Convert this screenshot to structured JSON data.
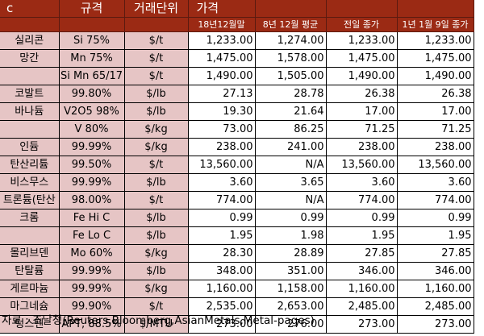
{
  "header": {
    "col_c": "c",
    "col_spec": "규격",
    "col_unit": "거래단위",
    "col_price": "가격",
    "sub_dec_end": "18년12월말",
    "sub_dec_avg": "8년 12월 평균",
    "sub_prev_close": "전일 종가",
    "sub_jan9": "1년 1월 9일 종가"
  },
  "rows": [
    {
      "name": "실리콘",
      "spec": "Si 75%",
      "unit": "$/t",
      "v1": "1,233.00",
      "v2": "1,274.00",
      "v3": "1,233.00",
      "v4": "1,233.00"
    },
    {
      "name": "망간",
      "spec": "Mn 75%",
      "unit": "$/t",
      "v1": "1,475.00",
      "v2": "1,578.00",
      "v3": "1,475.00",
      "v4": "1,475.00"
    },
    {
      "name": "",
      "spec": "Si Mn 65/17",
      "unit": "$/t",
      "v1": "1,490.00",
      "v2": "1,505.00",
      "v3": "1,490.00",
      "v4": "1,490.00"
    },
    {
      "name": "코발트",
      "spec": "99.80%",
      "unit": "$/lb",
      "v1": "27.13",
      "v2": "28.78",
      "v3": "26.38",
      "v4": "26.38"
    },
    {
      "name": "바나듐",
      "spec": "V2O5 98%",
      "unit": "$/lb",
      "v1": "19.30",
      "v2": "21.64",
      "v3": "17.00",
      "v4": "17.00"
    },
    {
      "name": "",
      "spec": "V 80%",
      "unit": "$/kg",
      "v1": "73.00",
      "v2": "86.25",
      "v3": "71.25",
      "v4": "71.25"
    },
    {
      "name": "인듐",
      "spec": "99.99%",
      "unit": "$/kg",
      "v1": "238.00",
      "v2": "241.00",
      "v3": "238.00",
      "v4": "238.00"
    },
    {
      "name": "탄산리튬",
      "spec": "99.50%",
      "unit": "$/t",
      "v1": "13,560.00",
      "v2": "N/A",
      "v3": "13,560.00",
      "v4": "13,560.00"
    },
    {
      "name": "비스무스",
      "spec": "99.99%",
      "unit": "$/lb",
      "v1": "3.60",
      "v2": "3.65",
      "v3": "3.60",
      "v4": "3.60"
    },
    {
      "name": "트론튬(탄산",
      "spec": "98.00%",
      "unit": "$/t",
      "v1": "774.00",
      "v2": "N/A",
      "v3": "774.00",
      "v4": "774.00"
    },
    {
      "name": "크롬",
      "spec": "Fe Hi C",
      "unit": "$/lb",
      "v1": "0.99",
      "v2": "0.99",
      "v3": "0.99",
      "v4": "0.99"
    },
    {
      "name": "",
      "spec": "Fe Lo C",
      "unit": "$/lb",
      "v1": "1.95",
      "v2": "1.98",
      "v3": "1.95",
      "v4": "1.95"
    },
    {
      "name": "몰리브덴",
      "spec": "Mo 60%",
      "unit": "$/kg",
      "v1": "28.30",
      "v2": "28.89",
      "v3": "27.85",
      "v4": "27.85"
    },
    {
      "name": "탄탈륨",
      "spec": "99.99%",
      "unit": "$/lb",
      "v1": "348.00",
      "v2": "351.00",
      "v3": "346.00",
      "v4": "346.00"
    },
    {
      "name": "게르마늄",
      "spec": "99.99%",
      "unit": "$/kg",
      "v1": "1,160.00",
      "v2": "1,158.00",
      "v3": "1,160.00",
      "v4": "1,160.00"
    },
    {
      "name": "마그네슘",
      "spec": "99.90%",
      "unit": "$/t",
      "v1": "2,535.00",
      "v2": "2,653.00",
      "v3": "2,485.00",
      "v4": "2,485.00"
    },
    {
      "name": "텅스텐",
      "spec": "APT, 88.5%",
      "unit": "$/MTU",
      "v1": "273.00",
      "v2": "276.00",
      "v3": "273.00",
      "v4": "273.00"
    }
  ],
  "source": "자료 : 조달청(Reuters,Bloomberg,AsianMetals,Metal-pages)",
  "colors": {
    "header_bg": "#9b2a14",
    "label_bg": "#e6c5c5"
  }
}
